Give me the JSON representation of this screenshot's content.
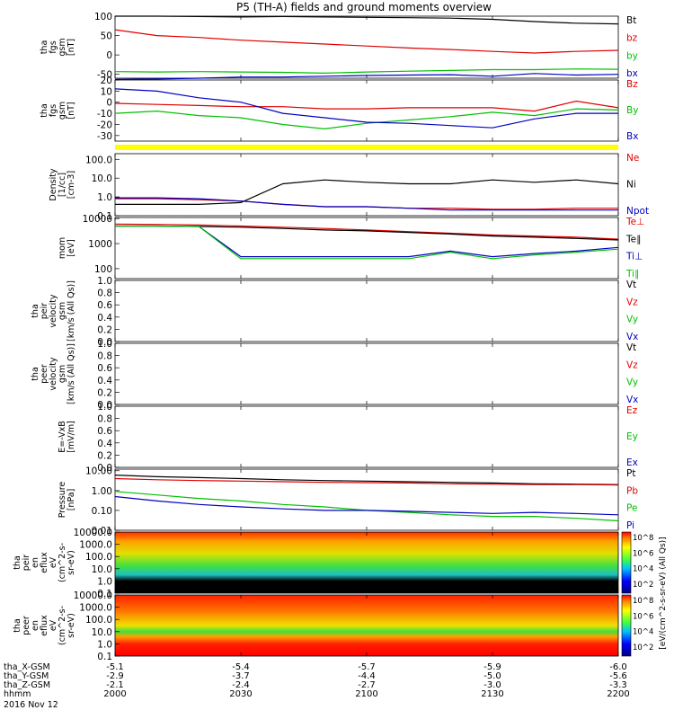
{
  "title": "P5 (TH-A) fields and ground moments overview",
  "chart_data": [
    {
      "type": "line",
      "panel": "fgs-gsm-field",
      "ylabel": [
        "tha",
        "fgs",
        "gsm",
        "[nT]"
      ],
      "ylim": [
        -60,
        100
      ],
      "yticks": [
        -50,
        0,
        50,
        100
      ],
      "x": [
        0,
        10,
        20,
        30,
        40,
        50,
        60,
        70,
        80,
        90,
        100,
        110,
        120
      ],
      "series": [
        {
          "name": "Bt",
          "color": "#000000",
          "values": [
            100,
            100,
            99,
            98,
            99,
            98,
            97,
            96,
            95,
            92,
            86,
            82,
            80
          ]
        },
        {
          "name": "bz",
          "color": "#e00000",
          "values": [
            65,
            50,
            45,
            38,
            33,
            28,
            23,
            18,
            14,
            9,
            5,
            9,
            12
          ]
        },
        {
          "name": "by",
          "color": "#00c000",
          "values": [
            -43,
            -44,
            -43,
            -44,
            -45,
            -47,
            -44,
            -42,
            -40,
            -38,
            -38,
            -36,
            -37
          ]
        },
        {
          "name": "bx",
          "color": "#0000c0",
          "values": [
            -63,
            -62,
            -60,
            -57,
            -57,
            -55,
            -53,
            -52,
            -51,
            -55,
            -48,
            -52,
            -50
          ]
        }
      ]
    },
    {
      "type": "line",
      "panel": "fgs-gsm-field-zoom",
      "ylabel": [
        "tha",
        "fgs",
        "gsm",
        "[nT]"
      ],
      "ylim": [
        -35,
        20
      ],
      "yticks": [
        -30,
        -20,
        -10,
        0,
        10,
        20
      ],
      "x": [
        0,
        10,
        20,
        30,
        40,
        50,
        60,
        70,
        80,
        90,
        100,
        110,
        120
      ],
      "series": [
        {
          "name": "Bz",
          "color": "#e00000",
          "values": [
            -1,
            -2,
            -3,
            -4,
            -4,
            -6,
            -6,
            -5,
            -5,
            -5,
            -8,
            1,
            -5
          ]
        },
        {
          "name": "By",
          "color": "#00c000",
          "values": [
            -10,
            -8,
            -12,
            -14,
            -20,
            -24,
            -19,
            -16,
            -13,
            -9,
            -12,
            -6,
            -7
          ]
        },
        {
          "name": "Bx",
          "color": "#0000c0",
          "values": [
            12,
            10,
            4,
            0,
            -10,
            -14,
            -18,
            -19,
            -21,
            -23,
            -15,
            -10,
            -10
          ]
        }
      ]
    },
    {
      "type": "line",
      "panel": "density",
      "ylabel": [
        "Density",
        "[1/cc]",
        "[cm-3]"
      ],
      "yscale": "log",
      "ylim": [
        0.1,
        200
      ],
      "yticks": [
        0.1,
        1.0,
        10.0,
        100.0
      ],
      "ytick_labels": [
        "0.1",
        "1.0",
        "10.0",
        "100.0"
      ],
      "x": [
        0,
        10,
        20,
        30,
        40,
        50,
        60,
        70,
        80,
        90,
        100,
        110,
        120
      ],
      "series": [
        {
          "name": "Ne",
          "color": "#e00000",
          "values": [
            0.8,
            0.8,
            0.7,
            0.6,
            0.4,
            0.3,
            0.3,
            0.25,
            0.25,
            0.22,
            0.22,
            0.25,
            0.25
          ]
        },
        {
          "name": "Ni",
          "color": "#000000",
          "values": [
            0.4,
            0.4,
            0.4,
            0.5,
            5,
            8,
            6,
            5,
            5,
            8,
            6,
            8,
            5
          ]
        },
        {
          "name": "Npot",
          "color": "#0000c0",
          "values": [
            0.9,
            0.9,
            0.8,
            0.6,
            0.4,
            0.3,
            0.3,
            0.25,
            0.2,
            0.2,
            0.2,
            0.2,
            0.2
          ]
        }
      ]
    },
    {
      "type": "line",
      "panel": "temperature",
      "ylabel": [
        "mom",
        "[eV]"
      ],
      "yscale": "log",
      "ylim": [
        40,
        11000
      ],
      "yticks": [
        100,
        1000,
        10000
      ],
      "ytick_labels": [
        "100",
        "1000",
        "10000"
      ],
      "x": [
        0,
        10,
        20,
        30,
        40,
        50,
        60,
        70,
        80,
        90,
        100,
        110,
        120
      ],
      "series": [
        {
          "name": "Te⊥",
          "color": "#e00000",
          "values": [
            6000,
            5800,
            5500,
            5000,
            4500,
            4000,
            3500,
            3000,
            2600,
            2200,
            2000,
            1800,
            1500
          ]
        },
        {
          "name": "Te∥",
          "color": "#000000",
          "values": [
            5000,
            5000,
            4800,
            4500,
            4000,
            3500,
            3200,
            2800,
            2400,
            2000,
            1800,
            1600,
            1400
          ]
        },
        {
          "name": "Ti⊥",
          "color": "#0000c0",
          "values": [
            5000,
            5000,
            4800,
            300,
            300,
            300,
            300,
            300,
            500,
            300,
            400,
            500,
            700
          ]
        },
        {
          "name": "Ti∥",
          "color": "#00c000",
          "values": [
            5000,
            5000,
            4800,
            250,
            250,
            250,
            250,
            250,
            450,
            250,
            350,
            450,
            600
          ]
        }
      ]
    },
    {
      "type": "line",
      "panel": "peir-velocity",
      "ylabel": [
        "tha",
        "peir",
        "velocity",
        "gsm",
        "[km/s (All Qs)]"
      ],
      "ylim": [
        0,
        1
      ],
      "yticks": [
        0.0,
        0.2,
        0.4,
        0.6,
        0.8,
        1.0
      ],
      "legend": [
        {
          "name": "Vt",
          "color": "#000000"
        },
        {
          "name": "Vz",
          "color": "#e00000"
        },
        {
          "name": "Vy",
          "color": "#00c000"
        },
        {
          "name": "Vx",
          "color": "#0000c0"
        }
      ]
    },
    {
      "type": "line",
      "panel": "peer-velocity",
      "ylabel": [
        "tha",
        "peer",
        "velocity",
        "gsm",
        "[km/s (All Qs)]"
      ],
      "ylim": [
        0,
        1
      ],
      "yticks": [
        0.0,
        0.2,
        0.4,
        0.6,
        0.8,
        1.0
      ],
      "legend": [
        {
          "name": "Vt",
          "color": "#000000"
        },
        {
          "name": "Vz",
          "color": "#e00000"
        },
        {
          "name": "Vy",
          "color": "#00c000"
        },
        {
          "name": "Vx",
          "color": "#0000c0"
        }
      ]
    },
    {
      "type": "line",
      "panel": "electric-field",
      "ylabel": [
        "E=-VxB",
        "[mV/m]"
      ],
      "ylim": [
        0,
        1
      ],
      "yticks": [
        0.0,
        0.2,
        0.4,
        0.6,
        0.8,
        1.0
      ],
      "legend": [
        {
          "name": "Ez",
          "color": "#e00000"
        },
        {
          "name": "Ey",
          "color": "#00c000"
        },
        {
          "name": "Ex",
          "color": "#0000c0"
        }
      ]
    },
    {
      "type": "line",
      "panel": "pressure",
      "ylabel": [
        "Pressure",
        "[nPa]"
      ],
      "yscale": "log",
      "ylim": [
        0.01,
        12
      ],
      "yticks": [
        0.01,
        0.1,
        1.0,
        10.0
      ],
      "ytick_labels": [
        "0.01",
        "0.10",
        "1.00",
        "10.00"
      ],
      "x": [
        0,
        10,
        20,
        30,
        40,
        50,
        60,
        70,
        80,
        90,
        100,
        110,
        120
      ],
      "series": [
        {
          "name": "Pt",
          "color": "#000000",
          "values": [
            6,
            5,
            4.5,
            4,
            3.5,
            3.2,
            3,
            2.8,
            2.6,
            2.4,
            2.2,
            2.1,
            2
          ]
        },
        {
          "name": "Pb",
          "color": "#e00000",
          "values": [
            4,
            3.5,
            3.2,
            3,
            2.8,
            2.6,
            2.5,
            2.4,
            2.2,
            2.1,
            2,
            2,
            1.9
          ]
        },
        {
          "name": "Pe",
          "color": "#00c000",
          "values": [
            0.9,
            0.6,
            0.4,
            0.3,
            0.2,
            0.15,
            0.1,
            0.08,
            0.06,
            0.05,
            0.05,
            0.04,
            0.03
          ]
        },
        {
          "name": "Pi",
          "color": "#0000c0",
          "values": [
            0.5,
            0.3,
            0.2,
            0.15,
            0.12,
            0.1,
            0.1,
            0.09,
            0.08,
            0.07,
            0.08,
            0.07,
            0.06
          ]
        }
      ]
    },
    {
      "type": "heatmap",
      "panel": "peir-energy-spectrogram",
      "ylabel": [
        "tha",
        "peir",
        "en",
        "eflux",
        "eV",
        "(cm^2-s-",
        "sr-eV)"
      ],
      "yscale": "log",
      "yticks": [
        0.1,
        1.0,
        10.0,
        100.0,
        1000.0,
        10000.0
      ],
      "ytick_labels": [
        "0.1",
        "1.0",
        "10.0",
        "100.0",
        "1000.0",
        "10000.0"
      ],
      "colorbar_ticks": [
        "10^2",
        "10^4",
        "10^6",
        "10^8"
      ],
      "colorbar_label": "[eV/(cm^2-s-sr-eV) (All Qs)]"
    },
    {
      "type": "heatmap",
      "panel": "peer-energy-spectrogram",
      "ylabel": [
        "tha",
        "peer",
        "en",
        "eflux",
        "eV",
        "(cm^2-s-",
        "sr-eV)"
      ],
      "yscale": "log",
      "yticks": [
        0.1,
        1.0,
        10.0,
        100.0,
        1000.0,
        10000.0
      ],
      "ytick_labels": [
        "0.1",
        "1.0",
        "10.0",
        "100.0",
        "1000.0",
        "10000.0"
      ],
      "colorbar_ticks": [
        "10^2",
        "10^4",
        "10^6",
        "10^8"
      ],
      "colorbar_label": "[eV/(cm^2-s-sr-eV) (All Qs)]"
    }
  ],
  "x_axis": {
    "rows": [
      {
        "label": "tha_X-GSM",
        "values": [
          "-5.1",
          "-5.4",
          "-5.7",
          "-5.9",
          "-6.0"
        ]
      },
      {
        "label": "tha_Y-GSM",
        "values": [
          "-2.9",
          "-3.7",
          "-4.4",
          "-5.0",
          "-5.6"
        ]
      },
      {
        "label": "tha_Z-GSM",
        "values": [
          "-2.1",
          "-2.4",
          "-2.7",
          "-3.0",
          "-3.3"
        ]
      },
      {
        "label": "hhmm",
        "values": [
          "2000",
          "2030",
          "2100",
          "2130",
          "2200"
        ]
      }
    ],
    "date": "2016 Nov 12"
  }
}
